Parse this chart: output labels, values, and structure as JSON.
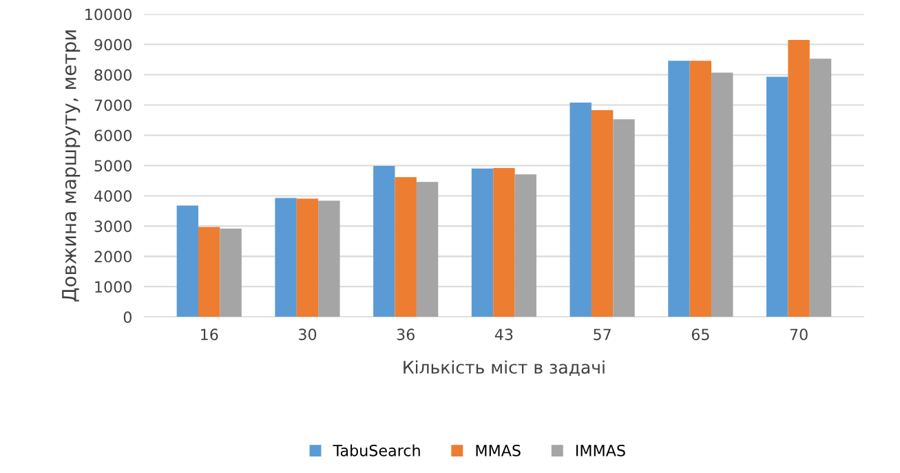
{
  "chart_data": {
    "type": "bar",
    "xlabel": "Кількість міст в задачі",
    "ylabel": "Довжина маршруту, метри",
    "categories": [
      "16",
      "30",
      "36",
      "43",
      "57",
      "65",
      "70"
    ],
    "series": [
      {
        "name": "TabuSearch",
        "color": "#5b9bd5",
        "values": [
          3680,
          3930,
          4990,
          4900,
          7080,
          8460,
          7930
        ]
      },
      {
        "name": "MMAS",
        "color": "#ed7d31",
        "values": [
          2970,
          3910,
          4620,
          4920,
          6830,
          8460,
          9150
        ]
      },
      {
        "name": "IMMAS",
        "color": "#a5a5a5",
        "values": [
          2920,
          3840,
          4460,
          4710,
          6530,
          8070,
          8530
        ]
      }
    ],
    "ylim": [
      0,
      10000
    ],
    "yticks": [
      0,
      1000,
      2000,
      3000,
      4000,
      5000,
      6000,
      7000,
      8000,
      9000,
      10000
    ],
    "grid": "y",
    "legend": "bottom"
  }
}
